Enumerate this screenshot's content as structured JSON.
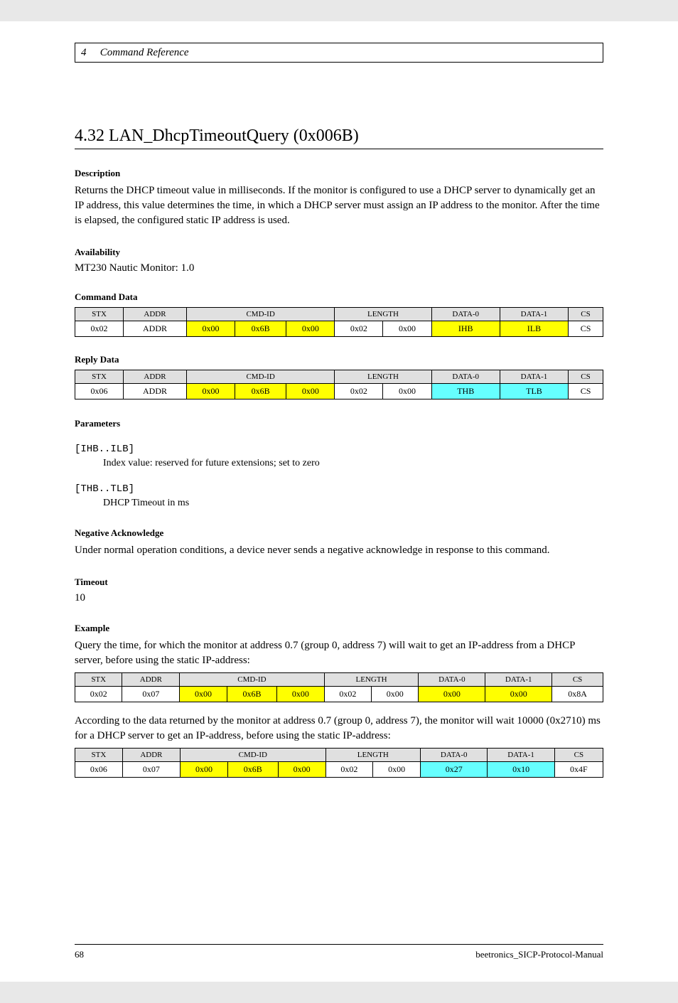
{
  "header": {
    "chapter": "4",
    "title": "Command Reference"
  },
  "section": {
    "number": "4.32 LAN_DhcpTimeoutQuery (0x006B)"
  },
  "description": {
    "title": "Description",
    "body": "Returns the DHCP timeout value in milliseconds. If the monitor is configured to use a DHCP server to dynamically get an IP address, this value determines the time, in which a DHCP server must assign an IP address to the monitor. After the time is elapsed, the configured static IP address is used."
  },
  "availability": {
    "title": "Availability",
    "value": "MT230 Nautic Monitor: 1.0"
  },
  "commandData": {
    "title": "Command Data",
    "headers": [
      "STX",
      "ADDR",
      "CMD-ID",
      "LENGTH",
      "DATA-0",
      "DATA-1",
      "CS"
    ],
    "cells": [
      "0x02",
      "ADDR",
      "0x00",
      "0x6B",
      "0x00",
      "0x02",
      "0x00",
      "IHB",
      "ILB",
      "CS"
    ],
    "yellowIndices": [
      2,
      3,
      4,
      7,
      8
    ]
  },
  "replyData": {
    "title": "Reply Data",
    "headers": [
      "STX",
      "ADDR",
      "CMD-ID",
      "LENGTH",
      "DATA-0",
      "DATA-1",
      "CS"
    ],
    "cells": [
      "0x06",
      "ADDR",
      "0x00",
      "0x6B",
      "0x00",
      "0x02",
      "0x00",
      "THB",
      "TLB",
      "CS"
    ],
    "yellowIndices": [
      2,
      3,
      4
    ],
    "cyanIndices": [
      7,
      8
    ]
  },
  "parameters": {
    "title": "Parameters",
    "items": [
      {
        "name": "[IHB..ILB]",
        "desc": "Index value: reserved for future extensions; set to zero"
      },
      {
        "name": "[THB..TLB]",
        "desc": "DHCP Timeout in ms"
      }
    ]
  },
  "negAck": {
    "title": "Negative Acknowledge",
    "body": "Under normal operation conditions, a device never sends a negative acknowledge in response to this command."
  },
  "timeout": {
    "title": "Timeout",
    "value": "10"
  },
  "example": {
    "title": "Example",
    "intro": "Query the time, for which the monitor at address 0.7 (group 0, address 7) will wait to get an IP-address from a DHCP server, before using the static IP-address:",
    "table1": {
      "headers": [
        "STX",
        "ADDR",
        "CMD-ID",
        "LENGTH",
        "DATA-0",
        "DATA-1",
        "CS"
      ],
      "cells": [
        "0x02",
        "0x07",
        "0x00",
        "0x6B",
        "0x00",
        "0x02",
        "0x00",
        "0x00",
        "0x00",
        "0x8A"
      ],
      "yellowIndices": [
        2,
        3,
        4,
        7,
        8
      ]
    },
    "mid": "According to the data returned by the monitor at address 0.7 (group 0, address 7), the monitor will wait 10000 (0x2710) ms for a DHCP server to get an IP-address, before using the static IP-address:",
    "table2": {
      "headers": [
        "STX",
        "ADDR",
        "CMD-ID",
        "LENGTH",
        "DATA-0",
        "DATA-1",
        "CS"
      ],
      "cells": [
        "0x06",
        "0x07",
        "0x00",
        "0x6B",
        "0x00",
        "0x02",
        "0x00",
        "0x27",
        "0x10",
        "0x4F"
      ],
      "yellowIndices": [
        2,
        3,
        4
      ],
      "cyanIndices": [
        7,
        8
      ]
    }
  },
  "footer": {
    "pageNum": "68",
    "docId": "beetronics_SICP-Protocol-Manual"
  }
}
